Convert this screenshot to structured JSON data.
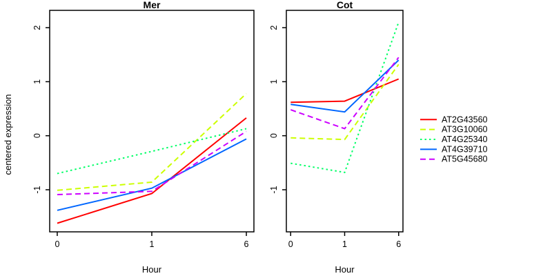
{
  "figure": {
    "ylabel": "centered expression",
    "background_color": "#ffffff",
    "axis_color": "#000000"
  },
  "legend": {
    "position": "right-margin",
    "border": "none",
    "entries": [
      {
        "label": "AT2G43560",
        "color": "#FF0000",
        "dash": "solid"
      },
      {
        "label": "AT3G10060",
        "color": "#CCFF00",
        "dash": "dashed"
      },
      {
        "label": "AT4G25340",
        "color": "#00FF66",
        "dash": "dotted"
      },
      {
        "label": "AT4G39710",
        "color": "#0066FF",
        "dash": "solid"
      },
      {
        "label": "AT5G45680",
        "color": "#CC00FF",
        "dash": "dashed"
      }
    ]
  },
  "chart_data": [
    {
      "type": "line",
      "title": "Mer",
      "xlabel": "Hour",
      "ylabel": "centered expression",
      "x": [
        0,
        1,
        6
      ],
      "x_tick_labels": [
        "0",
        "1",
        "6"
      ],
      "x_scale": "equally-spaced categories",
      "y_ticks": [
        -1,
        0,
        1,
        2
      ],
      "ylim": [
        -1.78,
        2.32
      ],
      "grid": "off",
      "series": [
        {
          "name": "AT2G43560",
          "color": "#FF0000",
          "linetype": "solid",
          "values": [
            -1.62,
            -1.07,
            0.33
          ]
        },
        {
          "name": "AT3G10060",
          "color": "#CCFF00",
          "linetype": "dashed",
          "values": [
            -1.01,
            -0.86,
            0.78
          ]
        },
        {
          "name": "AT4G25340",
          "color": "#00FF66",
          "linetype": "dotted",
          "values": [
            -0.7,
            -0.29,
            0.13
          ]
        },
        {
          "name": "AT4G39710",
          "color": "#0066FF",
          "linetype": "solid",
          "values": [
            -1.38,
            -0.97,
            -0.06
          ]
        },
        {
          "name": "AT5G45680",
          "color": "#CC00FF",
          "linetype": "dashed",
          "values": [
            -1.09,
            -1.03,
            0.08
          ]
        }
      ]
    },
    {
      "type": "line",
      "title": "Cot",
      "xlabel": "Hour",
      "ylabel": "centered expression",
      "x": [
        0,
        1,
        6
      ],
      "x_tick_labels": [
        "0",
        "1",
        "6"
      ],
      "x_scale": "equally-spaced categories",
      "y_ticks": [
        -1,
        0,
        1,
        2
      ],
      "ylim": [
        -1.78,
        2.32
      ],
      "grid": "off",
      "series": [
        {
          "name": "AT2G43560",
          "color": "#FF0000",
          "linetype": "solid",
          "values": [
            0.62,
            0.64,
            1.05
          ]
        },
        {
          "name": "AT3G10060",
          "color": "#CCFF00",
          "linetype": "dashed",
          "values": [
            -0.04,
            -0.07,
            1.32
          ]
        },
        {
          "name": "AT4G25340",
          "color": "#00FF66",
          "linetype": "dotted",
          "values": [
            -0.51,
            -0.68,
            2.1
          ]
        },
        {
          "name": "AT4G39710",
          "color": "#0066FF",
          "linetype": "solid",
          "values": [
            0.58,
            0.44,
            1.4
          ]
        },
        {
          "name": "AT5G45680",
          "color": "#CC00FF",
          "linetype": "dashed",
          "values": [
            0.48,
            0.13,
            1.45
          ]
        }
      ]
    }
  ]
}
